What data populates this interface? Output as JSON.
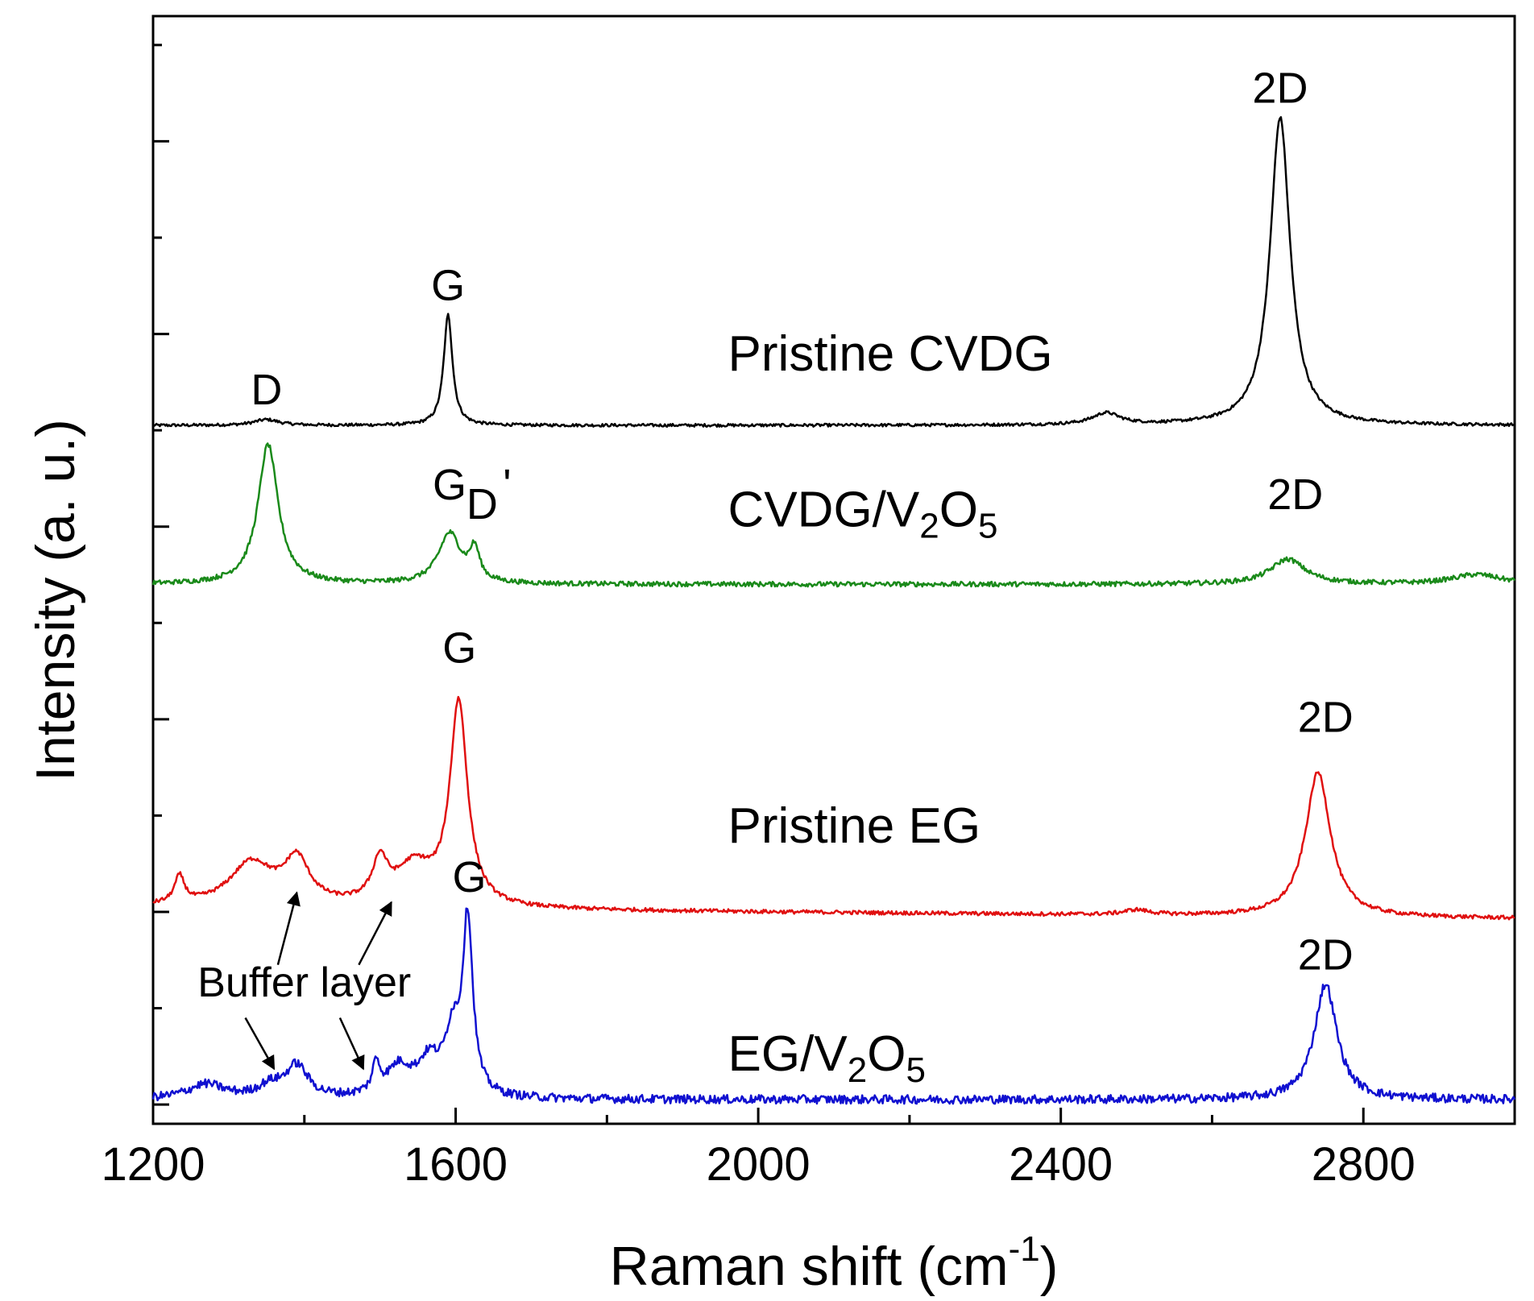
{
  "chart_data": {
    "type": "line",
    "title": "",
    "xlabel": "Raman shift (cm",
    "xlabel_sup": "-1",
    "xlabel_close": ")",
    "ylabel": "Intensity (a. u.)",
    "xlim": [
      1200,
      3000
    ],
    "ylim": [
      -0.2,
      11.3
    ],
    "xticks": [
      1200,
      1600,
      2000,
      2400,
      2800
    ],
    "yticks_count": 12,
    "grid": false,
    "legend": "none",
    "series": [
      {
        "name": "Pristine CVDG",
        "color": "#000000",
        "baseline": 7.05,
        "end_offset": 0.0,
        "noise": 0.015,
        "peaks": [
          {
            "x": 1350,
            "h": 0.06,
            "w": 20
          },
          {
            "x": 1590,
            "h": 1.15,
            "w": 7
          },
          {
            "x": 2460,
            "h": 0.12,
            "w": 22
          },
          {
            "x": 2690,
            "h": 3.2,
            "w": 16
          }
        ]
      },
      {
        "name": "CVDG/V2O5",
        "color": "#1a8a1a",
        "baseline": 5.4,
        "end_offset": 0.0,
        "noise": 0.025,
        "peaks": [
          {
            "x": 1352,
            "h": 1.45,
            "w": 16
          },
          {
            "x": 1592,
            "h": 0.52,
            "w": 18
          },
          {
            "x": 1625,
            "h": 0.32,
            "w": 8
          },
          {
            "x": 2700,
            "h": 0.26,
            "w": 28
          },
          {
            "x": 2950,
            "h": 0.1,
            "w": 40
          }
        ]
      },
      {
        "name": "Pristine EG",
        "color": "#e01010",
        "baseline": 2.05,
        "end_offset": -0.12,
        "noise": 0.02,
        "peaks": [
          {
            "x": 1235,
            "h": 0.28,
            "w": 8
          },
          {
            "x": 1330,
            "h": 0.45,
            "w": 35
          },
          {
            "x": 1390,
            "h": 0.45,
            "w": 20
          },
          {
            "x": 1500,
            "h": 0.42,
            "w": 12
          },
          {
            "x": 1545,
            "h": 0.4,
            "w": 30
          },
          {
            "x": 1604,
            "h": 2.1,
            "w": 14
          },
          {
            "x": 2500,
            "h": 0.05,
            "w": 20
          },
          {
            "x": 2740,
            "h": 1.5,
            "w": 20
          }
        ]
      },
      {
        "name": "EG/V2O5",
        "color": "#1010d0",
        "baseline": 0.05,
        "end_offset": 0.0,
        "noise": 0.045,
        "peaks": [
          {
            "x": 1270,
            "h": 0.15,
            "w": 30
          },
          {
            "x": 1390,
            "h": 0.33,
            "w": 18
          },
          {
            "x": 1355,
            "h": 0.12,
            "w": 20
          },
          {
            "x": 1495,
            "h": 0.3,
            "w": 6
          },
          {
            "x": 1525,
            "h": 0.3,
            "w": 20
          },
          {
            "x": 1565,
            "h": 0.35,
            "w": 18
          },
          {
            "x": 1596,
            "h": 0.6,
            "w": 12
          },
          {
            "x": 1616,
            "h": 1.8,
            "w": 8
          },
          {
            "x": 2750,
            "h": 1.2,
            "w": 18
          }
        ]
      }
    ],
    "sample_labels": [
      {
        "text": "Pristine CVDG",
        "x": 1960,
        "y": 7.62
      },
      {
        "main": "CVDG/V",
        "sub1": "2",
        "mid": "O",
        "sub2": "5",
        "x": 1960,
        "y": 6.0
      },
      {
        "text": "Pristine EG",
        "x": 1960,
        "y": 2.72
      },
      {
        "main": "EG/V",
        "sub1": "2",
        "mid": "O",
        "sub2": "5",
        "x": 1960,
        "y": 0.35
      }
    ],
    "peak_labels": [
      {
        "text": "D",
        "x": 1350,
        "y": 7.27
      },
      {
        "text": "G",
        "x": 1590,
        "y": 8.35
      },
      {
        "text": "2D",
        "x": 2690,
        "y": 10.4
      },
      {
        "text": "G",
        "x": 1592,
        "y": 6.28
      },
      {
        "text": "D",
        "x": 1635,
        "y": 6.08
      },
      {
        "text": "'",
        "x": 1668,
        "y": 6.28
      },
      {
        "text": "2D",
        "x": 2710,
        "y": 6.18
      },
      {
        "text": "G",
        "x": 1605,
        "y": 4.59
      },
      {
        "text": "2D",
        "x": 2750,
        "y": 3.87
      },
      {
        "text": "G",
        "x": 1618,
        "y": 2.21
      },
      {
        "text": "2D",
        "x": 2750,
        "y": 1.4
      }
    ],
    "annotations": [
      {
        "text": "Buffer layer",
        "x": 1400,
        "y": 1.12
      }
    ],
    "arrows": [
      {
        "from": [
          1365,
          1.45
        ],
        "to": [
          1390,
          2.2
        ]
      },
      {
        "from": [
          1472,
          1.45
        ],
        "to": [
          1515,
          2.1
        ]
      },
      {
        "from": [
          1322,
          0.9
        ],
        "to": [
          1360,
          0.37
        ]
      },
      {
        "from": [
          1447,
          0.9
        ],
        "to": [
          1478,
          0.37
        ]
      }
    ]
  }
}
